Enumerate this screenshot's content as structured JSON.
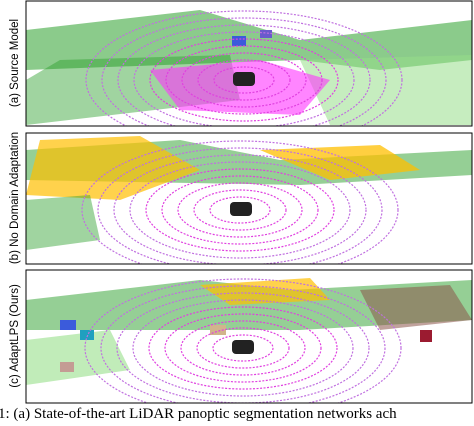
{
  "panels": [
    {
      "label": "(a) Source Model"
    },
    {
      "label": "(b) No Domain Adaptation"
    },
    {
      "label": "(c) AdaptLPS (Ours)"
    }
  ],
  "caption": "1: (a) State-of-the-art LiDAR panoptic segmentation networks ach"
}
